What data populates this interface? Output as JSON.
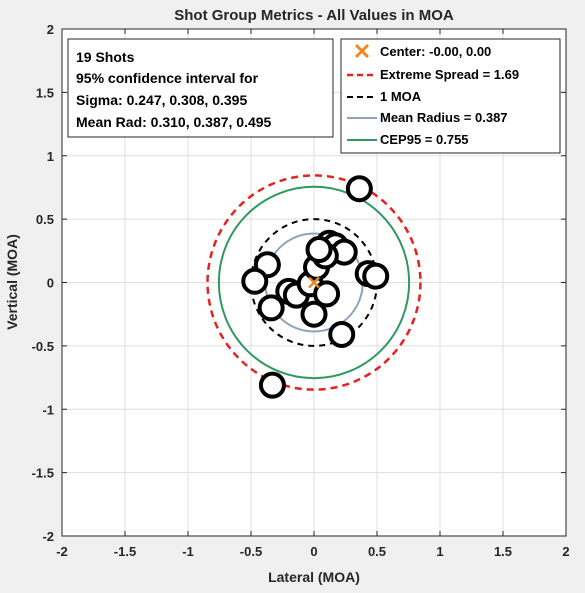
{
  "chart_data": {
    "type": "scatter",
    "title": "Shot Group Metrics - All Values in MOA",
    "xlabel": "Lateral (MOA)",
    "ylabel": "Vertical (MOA)",
    "xlim": [
      -2,
      2
    ],
    "ylim": [
      -2,
      2
    ],
    "xticks": [
      -2,
      -1.5,
      -1,
      -0.5,
      0,
      0.5,
      1,
      1.5,
      2
    ],
    "yticks": [
      -2,
      -1.5,
      -1,
      -0.5,
      0,
      0.5,
      1,
      1.5,
      2
    ],
    "xtick_labels": [
      "-2",
      "-1.5",
      "-1",
      "-0.5",
      "0",
      "0.5",
      "1",
      "1.5",
      "2"
    ],
    "ytick_labels": [
      "-2",
      "-1.5",
      "-1",
      "-0.5",
      "0",
      "0.5",
      "1",
      "1.5",
      "2"
    ],
    "grid": true,
    "legend_position": "top-right",
    "shots": {
      "x": [
        0.36,
        -0.37,
        -0.47,
        -0.34,
        -0.2,
        -0.14,
        -0.03,
        0.02,
        0.0,
        0.1,
        0.12,
        0.17,
        0.24,
        0.43,
        0.49,
        -0.33,
        0.22,
        0.09,
        0.04
      ],
      "y": [
        0.74,
        0.14,
        0.01,
        -0.2,
        -0.07,
        -0.1,
        -0.01,
        0.12,
        -0.25,
        -0.09,
        0.31,
        0.29,
        0.24,
        0.07,
        0.05,
        -0.81,
        -0.41,
        0.21,
        0.26
      ],
      "marker_color": "#000000",
      "marker_fill": "#ffffff"
    },
    "center": {
      "label": "Center: -0.00, 0.00",
      "x": 0.0,
      "y": 0.0,
      "color": "#ee8820"
    },
    "circles": [
      {
        "label": "Extreme Spread = 1.69",
        "diameter": 1.69,
        "color": "#e82020",
        "style": "dashed"
      },
      {
        "label": "1 MOA",
        "diameter": 1.0,
        "color": "#000000",
        "style": "dashed"
      },
      {
        "label": "Mean Radius = 0.387",
        "radius": 0.387,
        "color": "#8fa3bd",
        "style": "solid"
      },
      {
        "label": "CEP95 = 0.755",
        "radius": 0.755,
        "color": "#2e9960",
        "style": "solid"
      }
    ],
    "info_box": [
      "19 Shots",
      "95% confidence interval for",
      "Sigma: 0.247, 0.308, 0.395",
      "Mean Rad: 0.310, 0.387, 0.495"
    ]
  }
}
